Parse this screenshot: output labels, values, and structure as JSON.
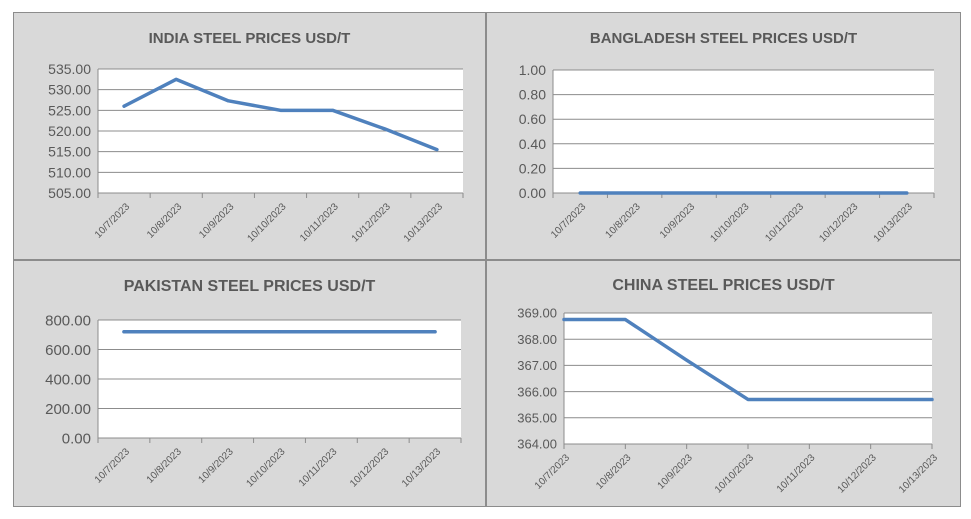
{
  "colors": {
    "panel_bg": "#d9d9d9",
    "plot_bg": "#ffffff",
    "line": "#4f81bd",
    "grid": "#8c8c8c",
    "text": "#595959"
  },
  "chart_data": [
    {
      "type": "line",
      "title": "INDIA STEEL PRICES USD/T",
      "categories": [
        "10/7/2023",
        "10/8/2023",
        "10/9/2023",
        "10/10/2023",
        "10/11/2023",
        "10/12/2023",
        "10/13/2023"
      ],
      "series": [
        {
          "values": [
            526,
            532.5,
            527.3,
            525,
            525,
            520.5,
            515.5
          ]
        }
      ],
      "ylim": [
        505,
        535
      ],
      "yticks": [
        505,
        510,
        515,
        520,
        525,
        530,
        535
      ],
      "ytick_labels": [
        "505.00",
        "510.00",
        "515.00",
        "520.00",
        "525.00",
        "530.00",
        "535.00"
      ],
      "grid": true,
      "xlabel": "",
      "ylabel": ""
    },
    {
      "type": "line",
      "title": "BANGLADESH STEEL PRICES USD/T",
      "categories": [
        "10/7/2023",
        "10/8/2023",
        "10/9/2023",
        "10/10/2023",
        "10/11/2023",
        "10/12/2023",
        "10/13/2023"
      ],
      "series": [
        {
          "values": [
            0,
            0,
            0,
            0,
            0,
            0,
            0
          ]
        }
      ],
      "ylim": [
        0,
        1
      ],
      "yticks": [
        0,
        0.2,
        0.4,
        0.6,
        0.8,
        1
      ],
      "ytick_labels": [
        "0.00",
        "0.20",
        "0.40",
        "0.60",
        "0.80",
        "1.00"
      ],
      "grid": true,
      "xlabel": "",
      "ylabel": ""
    },
    {
      "type": "line",
      "title": "PAKISTAN STEEL PRICES USD/T",
      "categories": [
        "10/7/2023",
        "10/8/2023",
        "10/9/2023",
        "10/10/2023",
        "10/11/2023",
        "10/12/2023",
        "10/13/2023"
      ],
      "series": [
        {
          "values": [
            720,
            720,
            720,
            720,
            720,
            720,
            720
          ]
        }
      ],
      "ylim": [
        0,
        800
      ],
      "yticks": [
        0,
        200,
        400,
        600,
        800
      ],
      "ytick_labels": [
        "0.00",
        "200.00",
        "400.00",
        "600.00",
        "800.00"
      ],
      "grid": true,
      "xlabel": "",
      "ylabel": ""
    },
    {
      "type": "line",
      "title": "CHINA STEEL PRICES USD/T",
      "categories": [
        "10/7/2023",
        "10/8/2023",
        "10/9/2023",
        "10/10/2023",
        "10/11/2023",
        "10/12/2023",
        "10/13/2023"
      ],
      "series": [
        {
          "values": [
            368.75,
            368.75,
            367.2,
            365.7,
            365.7,
            365.7,
            365.7
          ]
        }
      ],
      "ylim": [
        364,
        369
      ],
      "yticks": [
        364,
        365,
        366,
        367,
        368,
        369
      ],
      "ytick_labels": [
        "364.00",
        "365.00",
        "366.00",
        "367.00",
        "368.00",
        "369.00"
      ],
      "grid": true,
      "xlabel": "",
      "ylabel": ""
    }
  ]
}
